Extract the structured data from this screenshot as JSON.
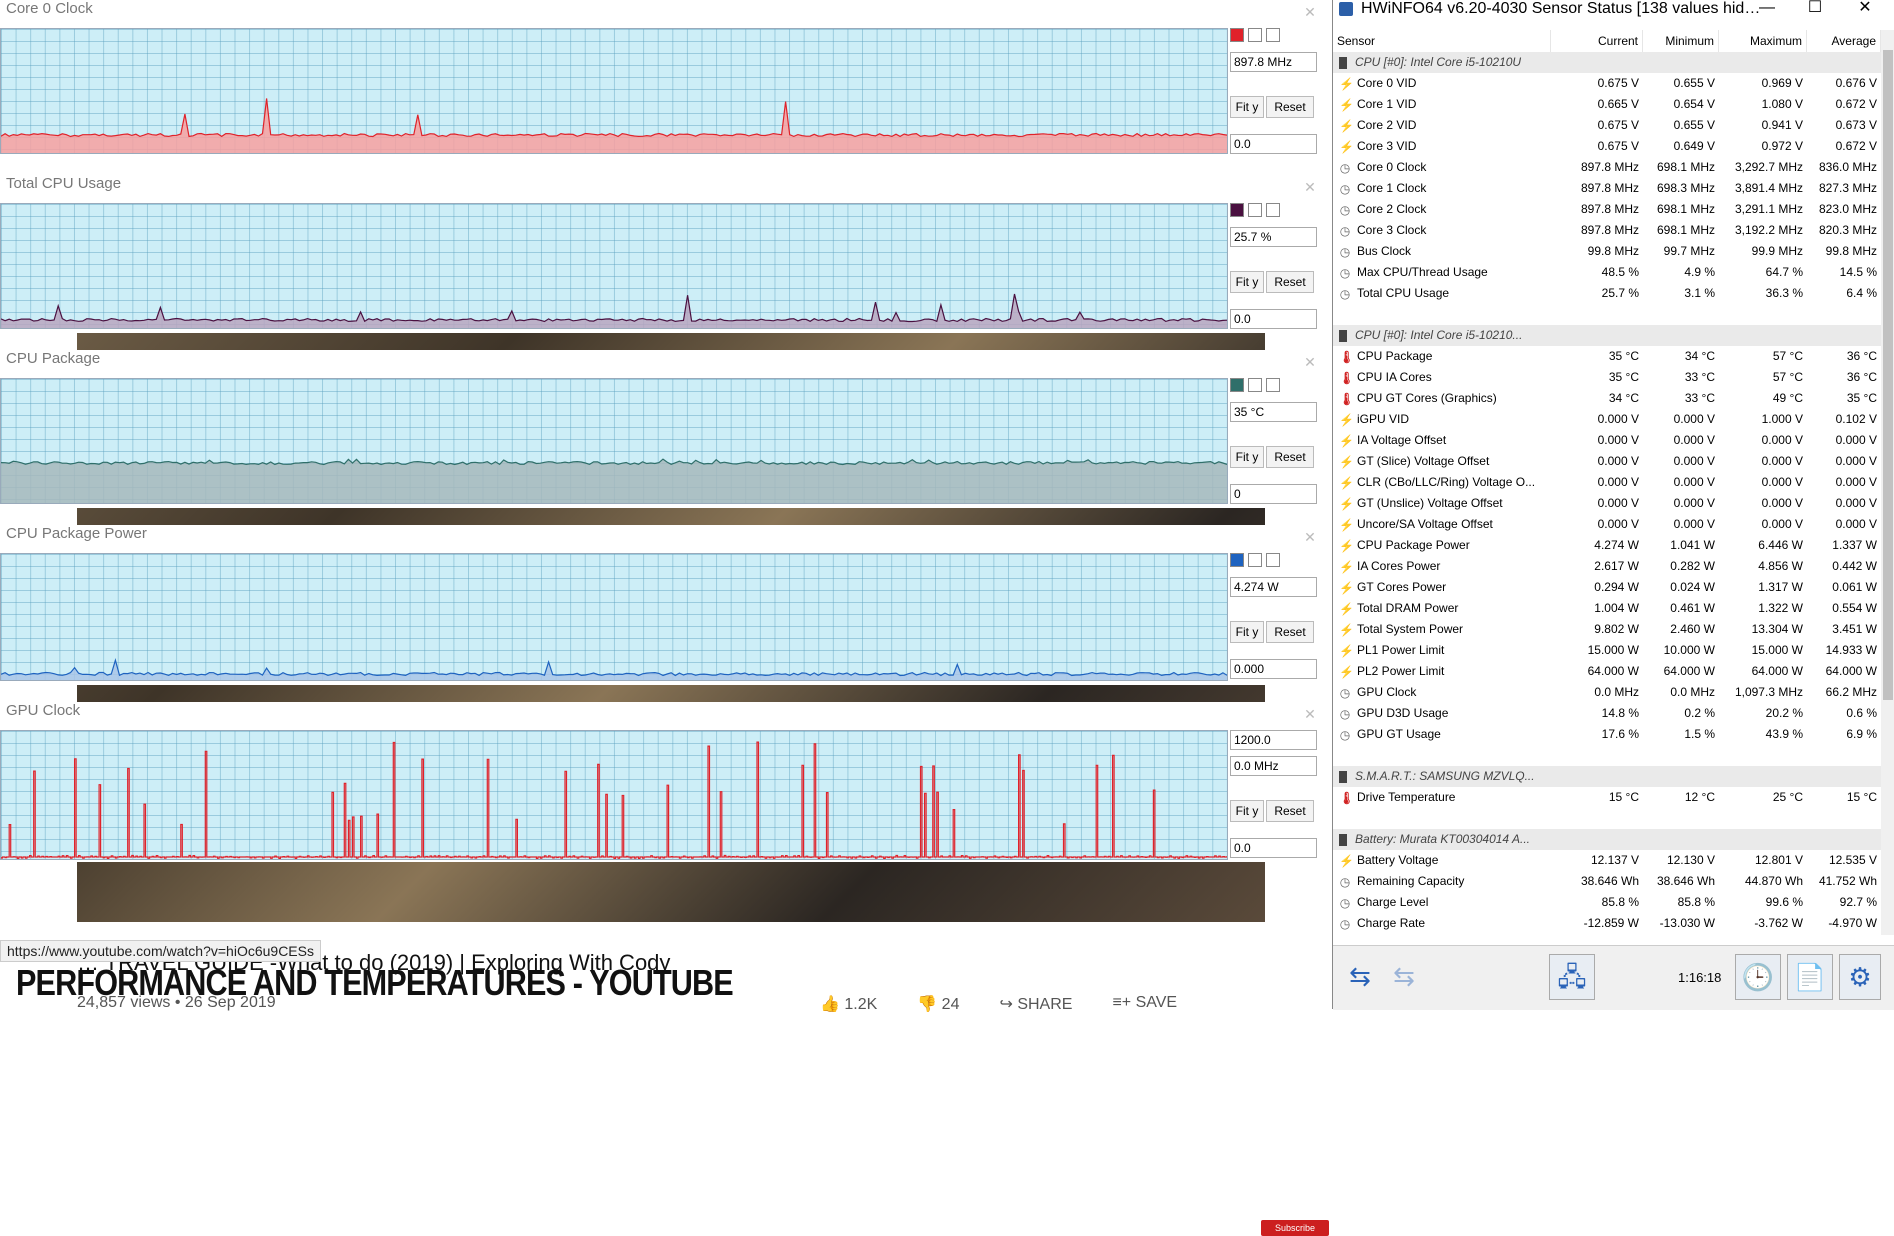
{
  "youtube": {
    "url_tooltip": "https://www.youtube.com/watch?v=hiOc6u9CESs",
    "video_title": "… TRAVEL GUIDE -What to do (2019) | Exploring With Cody",
    "overlay_title": "PERFORMANCE AND TEMPERATURES - YOUTUBE",
    "meta": "24,857 views • 26 Sep 2019",
    "likes": "1.2K",
    "dislikes": "24",
    "share": "SHARE",
    "save": "SAVE",
    "subscribe": "Subscribe"
  },
  "graphs": [
    {
      "title": "Core 0 Clock",
      "value": "897.8 MHz",
      "min": "0.0",
      "color": "#e0222a",
      "fill": "#f7a0a0"
    },
    {
      "title": "Total CPU Usage",
      "value": "25.7 %",
      "min": "0.0",
      "color": "#4a1040",
      "fill": "#b8a6c0"
    },
    {
      "title": "CPU Package",
      "value": "35 °C",
      "min": "0",
      "color": "#2f6f6a",
      "fill": "#a6b8bc"
    },
    {
      "title": "CPU Package Power",
      "value": "4.274 W",
      "min": "0.000",
      "color": "#1e63c0",
      "fill": "#a9c6e8"
    },
    {
      "title": "GPU Clock",
      "top_value": "1200.0",
      "value": "0.0 MHz",
      "min": "0.0",
      "color": "#e0222a",
      "fill": "none"
    }
  ],
  "graph_buttons": {
    "fit": "Fit y",
    "reset": "Reset"
  },
  "hwinfo": {
    "title": "HWiNFO64 v6.20-4030 Sensor Status [138 values hid…",
    "columns": [
      "Sensor",
      "Current",
      "Minimum",
      "Maximum",
      "Average"
    ],
    "rows": [
      {
        "type": "group",
        "label": "CPU [#0]: Intel Core i5-10210U"
      },
      {
        "icon": "volt",
        "label": "Core 0 VID",
        "cur": "0.675 V",
        "min": "0.655 V",
        "max": "0.969 V",
        "avg": "0.676 V"
      },
      {
        "icon": "volt",
        "label": "Core 1 VID",
        "cur": "0.665 V",
        "min": "0.654 V",
        "max": "1.080 V",
        "avg": "0.672 V"
      },
      {
        "icon": "volt",
        "label": "Core 2 VID",
        "cur": "0.675 V",
        "min": "0.655 V",
        "max": "0.941 V",
        "avg": "0.673 V"
      },
      {
        "icon": "volt",
        "label": "Core 3 VID",
        "cur": "0.675 V",
        "min": "0.649 V",
        "max": "0.972 V",
        "avg": "0.672 V"
      },
      {
        "icon": "clock",
        "label": "Core 0 Clock",
        "cur": "897.8 MHz",
        "min": "698.1 MHz",
        "max": "3,292.7 MHz",
        "avg": "836.0 MHz"
      },
      {
        "icon": "clock",
        "label": "Core 1 Clock",
        "cur": "897.8 MHz",
        "min": "698.3 MHz",
        "max": "3,891.4 MHz",
        "avg": "827.3 MHz"
      },
      {
        "icon": "clock",
        "label": "Core 2 Clock",
        "cur": "897.8 MHz",
        "min": "698.1 MHz",
        "max": "3,291.1 MHz",
        "avg": "823.0 MHz"
      },
      {
        "icon": "clock",
        "label": "Core 3 Clock",
        "cur": "897.8 MHz",
        "min": "698.1 MHz",
        "max": "3,192.2 MHz",
        "avg": "820.3 MHz"
      },
      {
        "icon": "clock",
        "label": "Bus Clock",
        "cur": "99.8 MHz",
        "min": "99.7 MHz",
        "max": "99.9 MHz",
        "avg": "99.8 MHz"
      },
      {
        "icon": "clock",
        "label": "Max CPU/Thread Usage",
        "cur": "48.5 %",
        "min": "4.9 %",
        "max": "64.7 %",
        "avg": "14.5 %"
      },
      {
        "icon": "clock",
        "label": "Total CPU Usage",
        "cur": "25.7 %",
        "min": "3.1 %",
        "max": "36.3 %",
        "avg": "6.4 %"
      },
      {
        "type": "blank"
      },
      {
        "type": "group",
        "label": "CPU [#0]: Intel Core i5-10210..."
      },
      {
        "icon": "temp",
        "label": "CPU Package",
        "cur": "35 °C",
        "min": "34 °C",
        "max": "57 °C",
        "avg": "36 °C"
      },
      {
        "icon": "temp",
        "label": "CPU IA Cores",
        "cur": "35 °C",
        "min": "33 °C",
        "max": "57 °C",
        "avg": "36 °C"
      },
      {
        "icon": "temp",
        "label": "CPU GT Cores (Graphics)",
        "cur": "34 °C",
        "min": "33 °C",
        "max": "49 °C",
        "avg": "35 °C"
      },
      {
        "icon": "volt",
        "label": "iGPU VID",
        "cur": "0.000 V",
        "min": "0.000 V",
        "max": "1.000 V",
        "avg": "0.102 V"
      },
      {
        "icon": "volt",
        "label": "IA Voltage Offset",
        "cur": "0.000 V",
        "min": "0.000 V",
        "max": "0.000 V",
        "avg": "0.000 V"
      },
      {
        "icon": "volt",
        "label": "GT (Slice) Voltage Offset",
        "cur": "0.000 V",
        "min": "0.000 V",
        "max": "0.000 V",
        "avg": "0.000 V"
      },
      {
        "icon": "volt",
        "label": "CLR (CBo/LLC/Ring) Voltage O...",
        "cur": "0.000 V",
        "min": "0.000 V",
        "max": "0.000 V",
        "avg": "0.000 V"
      },
      {
        "icon": "volt",
        "label": "GT (Unslice) Voltage Offset",
        "cur": "0.000 V",
        "min": "0.000 V",
        "max": "0.000 V",
        "avg": "0.000 V"
      },
      {
        "icon": "volt",
        "label": "Uncore/SA Voltage Offset",
        "cur": "0.000 V",
        "min": "0.000 V",
        "max": "0.000 V",
        "avg": "0.000 V"
      },
      {
        "icon": "power",
        "label": "CPU Package Power",
        "cur": "4.274 W",
        "min": "1.041 W",
        "max": "6.446 W",
        "avg": "1.337 W"
      },
      {
        "icon": "power",
        "label": "IA Cores Power",
        "cur": "2.617 W",
        "min": "0.282 W",
        "max": "4.856 W",
        "avg": "0.442 W"
      },
      {
        "icon": "power",
        "label": "GT Cores Power",
        "cur": "0.294 W",
        "min": "0.024 W",
        "max": "1.317 W",
        "avg": "0.061 W"
      },
      {
        "icon": "power",
        "label": "Total DRAM Power",
        "cur": "1.004 W",
        "min": "0.461 W",
        "max": "1.322 W",
        "avg": "0.554 W"
      },
      {
        "icon": "power",
        "label": "Total System Power",
        "cur": "9.802 W",
        "min": "2.460 W",
        "max": "13.304 W",
        "avg": "3.451 W"
      },
      {
        "icon": "power",
        "label": "PL1 Power Limit",
        "cur": "15.000 W",
        "min": "10.000 W",
        "max": "15.000 W",
        "avg": "14.933 W"
      },
      {
        "icon": "power",
        "label": "PL2 Power Limit",
        "cur": "64.000 W",
        "min": "64.000 W",
        "max": "64.000 W",
        "avg": "64.000 W"
      },
      {
        "icon": "clock",
        "label": "GPU Clock",
        "cur": "0.0 MHz",
        "min": "0.0 MHz",
        "max": "1,097.3 MHz",
        "avg": "66.2 MHz"
      },
      {
        "icon": "clock",
        "label": "GPU D3D Usage",
        "cur": "14.8 %",
        "min": "0.2 %",
        "max": "20.2 %",
        "avg": "0.6 %"
      },
      {
        "icon": "clock",
        "label": "GPU GT Usage",
        "cur": "17.6 %",
        "min": "1.5 %",
        "max": "43.9 %",
        "avg": "6.9 %"
      },
      {
        "type": "blank"
      },
      {
        "type": "group",
        "label": "S.M.A.R.T.: SAMSUNG MZVLQ..."
      },
      {
        "icon": "temp",
        "label": "Drive Temperature",
        "cur": "15 °C",
        "min": "12 °C",
        "max": "25 °C",
        "avg": "15 °C"
      },
      {
        "type": "blank"
      },
      {
        "type": "group",
        "label": "Battery: Murata KT00304014 A..."
      },
      {
        "icon": "volt",
        "label": "Battery Voltage",
        "cur": "12.137 V",
        "min": "12.130 V",
        "max": "12.801 V",
        "avg": "12.535 V"
      },
      {
        "icon": "clock",
        "label": "Remaining Capacity",
        "cur": "38.646 Wh",
        "min": "38.646 Wh",
        "max": "44.870 Wh",
        "avg": "41.752 Wh"
      },
      {
        "icon": "clock",
        "label": "Charge Level",
        "cur": "85.8 %",
        "min": "85.8 %",
        "max": "99.6 %",
        "avg": "92.7 %"
      },
      {
        "icon": "clock",
        "label": "Charge Rate",
        "cur": "-12.859 W",
        "min": "-13.030 W",
        "max": "-3.762 W",
        "avg": "-4.970 W"
      }
    ],
    "timer": "1:16:18"
  }
}
